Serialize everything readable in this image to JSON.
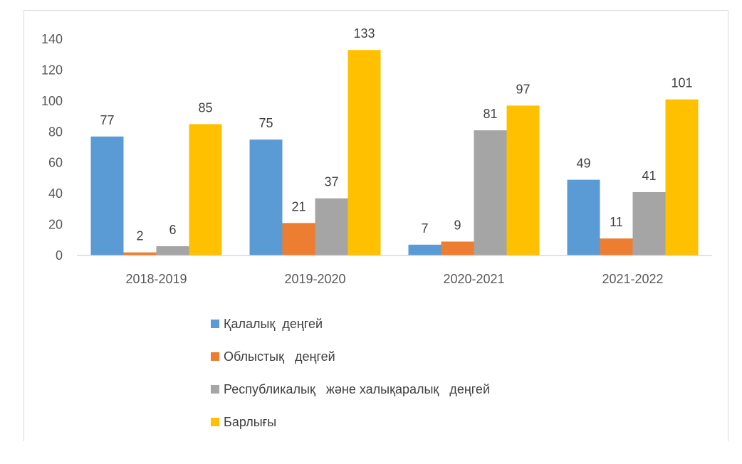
{
  "chart_data": {
    "type": "bar",
    "categories": [
      "2018-2019",
      "2019-2020",
      "2020-2021",
      "2021-2022"
    ],
    "series": [
      {
        "name": "Қалалық  деңгей",
        "color": "#5b9bd5",
        "values": [
          77,
          75,
          7,
          49
        ]
      },
      {
        "name": "Облыстық   деңгей",
        "color": "#ed7d31",
        "values": [
          2,
          21,
          9,
          11
        ]
      },
      {
        "name": "Республикалық   және халықаралық   деңгей",
        "color": "#a5a5a5",
        "values": [
          6,
          37,
          81,
          41
        ]
      },
      {
        "name": "Барлығы",
        "color": "#ffc000",
        "values": [
          85,
          133,
          97,
          101
        ]
      }
    ],
    "ylim": [
      0,
      140
    ],
    "yticks": [
      0,
      20,
      40,
      60,
      80,
      100,
      120,
      140
    ],
    "grid": false,
    "legend_position": "bottom-left",
    "data_labels": true
  }
}
